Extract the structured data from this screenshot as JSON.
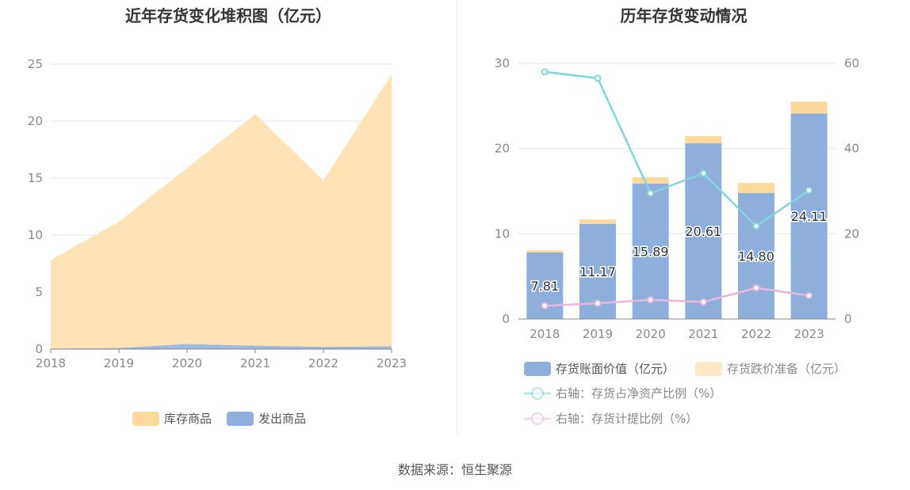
{
  "chart_data": [
    {
      "type": "area",
      "title": "近年存货变化堆积图（亿元）",
      "x": [
        "2018",
        "2019",
        "2020",
        "2021",
        "2022",
        "2023"
      ],
      "ylim": [
        0,
        25
      ],
      "yticks": [
        "0",
        "5",
        "10",
        "15",
        "20",
        "25"
      ],
      "stacked": true,
      "series": [
        {
          "name": "发出商品",
          "values": [
            0.05,
            0.1,
            0.45,
            0.3,
            0.2,
            0.25
          ],
          "color": "#8eaedc"
        },
        {
          "name": "库存商品",
          "values": [
            7.76,
            11.07,
            15.44,
            20.31,
            14.6,
            23.86
          ],
          "color": "#fde3b5"
        }
      ],
      "legend": [
        "库存商品",
        "发出商品"
      ],
      "legend_colors": [
        "#fdd99b",
        "#8eaedc"
      ],
      "legend_position": "bottom",
      "grid": true
    },
    {
      "type": "bar",
      "title": "历年存货变动情况",
      "categories": [
        "2018",
        "2019",
        "2020",
        "2021",
        "2022",
        "2023"
      ],
      "ylim": [
        0,
        30
      ],
      "yticks": [
        "0",
        "10",
        "20",
        "30"
      ],
      "y2lim": [
        0,
        60
      ],
      "y2ticks": [
        "0",
        "20",
        "40",
        "60"
      ],
      "stacked": true,
      "series": [
        {
          "name": "存货账面价值（亿元）",
          "values": [
            7.81,
            11.17,
            15.89,
            20.61,
            14.8,
            24.11
          ],
          "labels": [
            "7.81",
            "11.17",
            "15.89",
            "20.61",
            "14.80",
            "24.11"
          ],
          "color": "#8eaedc"
        },
        {
          "name": "存货跌价准备（亿元）",
          "values": [
            0.25,
            0.5,
            0.75,
            0.85,
            1.15,
            1.4
          ],
          "color": "#fdd99b"
        },
        {
          "name": "右轴：存货占净资产比例（%）",
          "type": "line",
          "axis": "right",
          "values": [
            58,
            56.5,
            29.5,
            34.2,
            21.8,
            30.2
          ],
          "color": "#7fd6dc"
        },
        {
          "name": "右轴：存货计提比例（%）",
          "type": "line",
          "axis": "right",
          "values": [
            3.1,
            3.7,
            4.5,
            4.0,
            7.3,
            5.5
          ],
          "color": "#eab7dc"
        }
      ],
      "legend_position": "bottom",
      "grid": true
    }
  ],
  "source": "数据来源：恒生聚源"
}
